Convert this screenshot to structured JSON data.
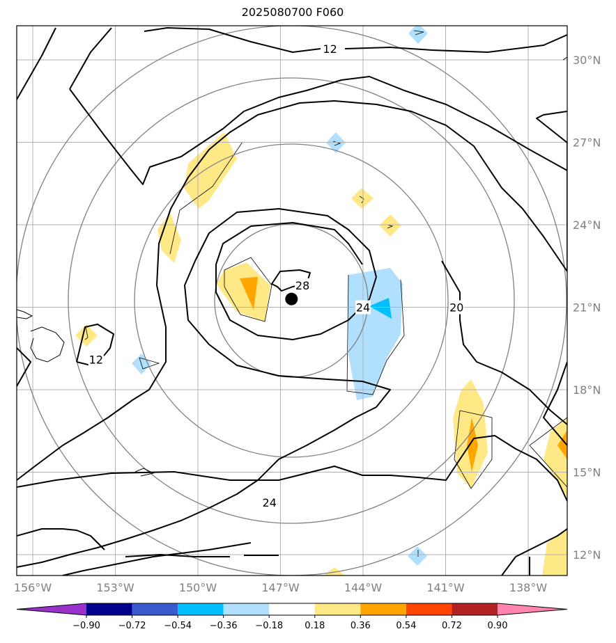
{
  "map": {
    "title": "2025080700 F060",
    "lon_ticks": [
      "156°W",
      "153°W",
      "150°W",
      "147°W",
      "144°W",
      "141°W",
      "138°W"
    ],
    "lat_ticks": [
      "30°N",
      "27°N",
      "24°N",
      "21°N",
      "18°N",
      "15°N",
      "12°N"
    ],
    "contour_labels": [
      {
        "text": "12",
        "lon": -145.2,
        "lat": 30.4
      },
      {
        "text": "12",
        "lon": -153.7,
        "lat": 19.1
      },
      {
        "text": "28",
        "lon": -146.2,
        "lat": 21.8
      },
      {
        "text": "24",
        "lon": -144.0,
        "lat": 21.0
      },
      {
        "text": "20",
        "lon": -140.6,
        "lat": 21.0
      },
      {
        "text": "24",
        "lon": -147.4,
        "lat": 13.9
      }
    ],
    "storm_center": {
      "lon": -146.6,
      "lat": 21.3
    },
    "colors": {
      "contour": "#000000",
      "grid": "#b0b0b0",
      "ring": "#808080"
    }
  },
  "colorbar": {
    "ticks": [
      "−0.90",
      "−0.72",
      "−0.54",
      "−0.36",
      "−0.18",
      "0.18",
      "0.36",
      "0.54",
      "0.72",
      "0.90"
    ],
    "colors": [
      "#9932cc",
      "#00008b",
      "#3a5ccf",
      "#00bfff",
      "#b0e0fe",
      "#ffffff",
      "#ffe987",
      "#ffa500",
      "#ff4500",
      "#b22222",
      "#ff85b0"
    ]
  }
}
